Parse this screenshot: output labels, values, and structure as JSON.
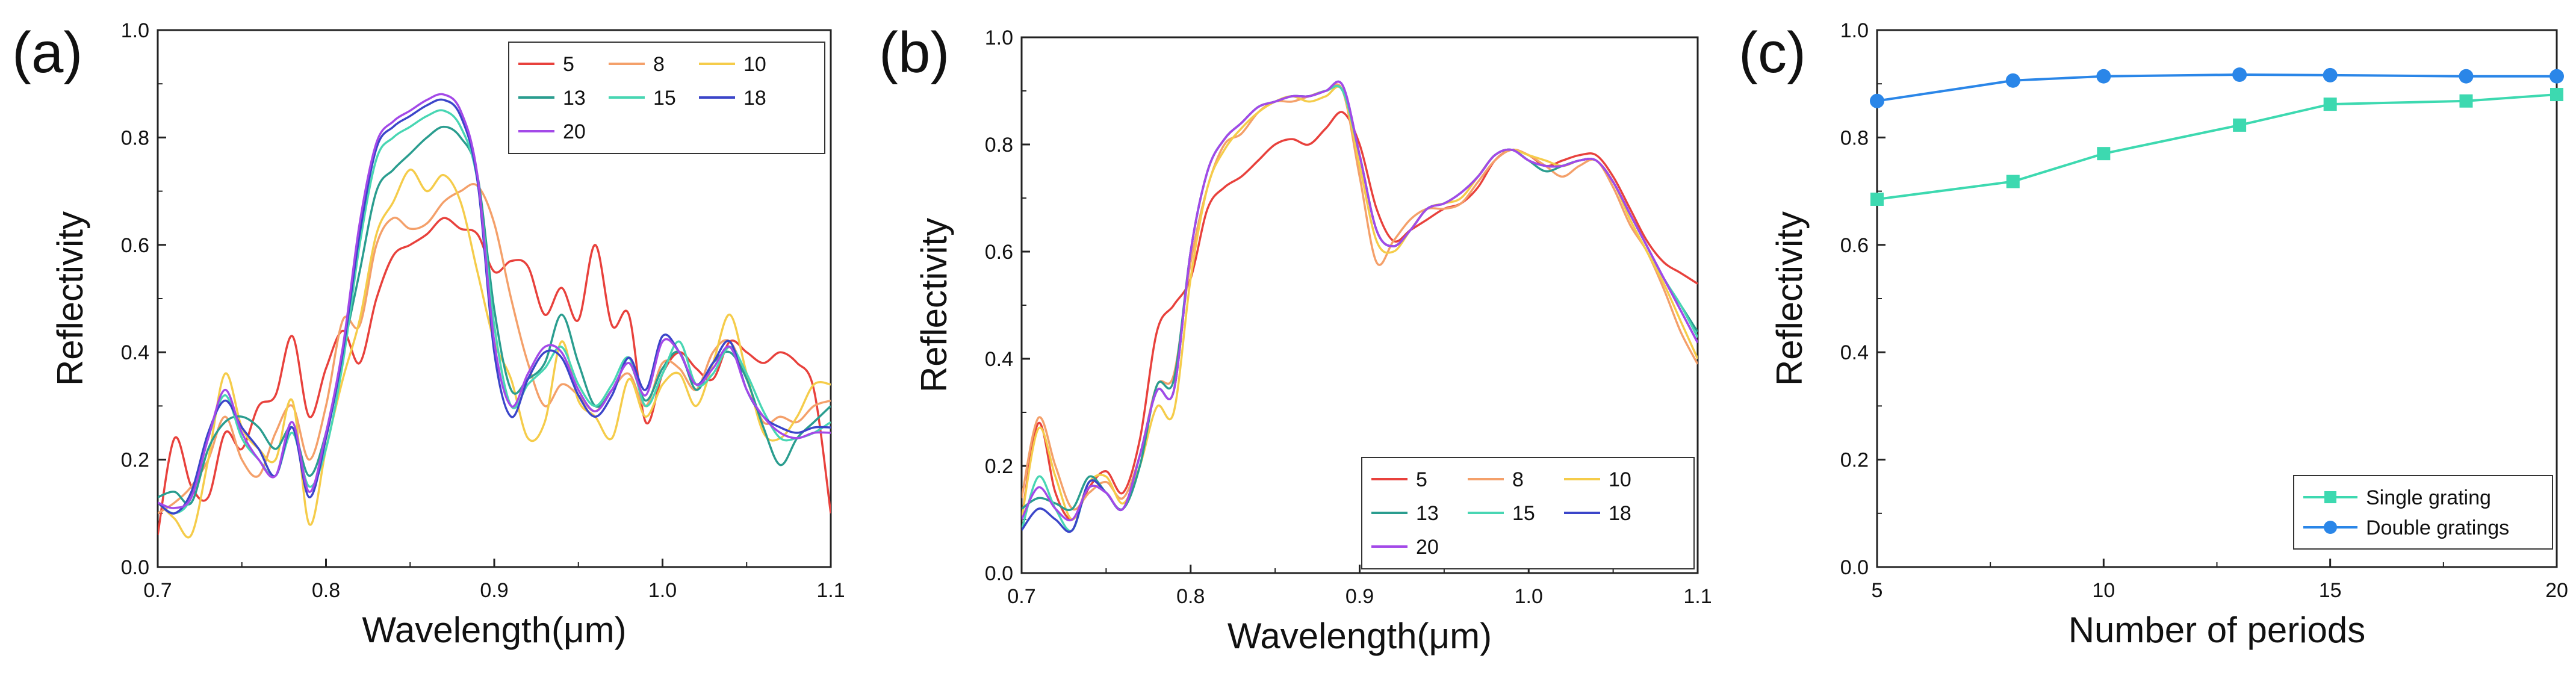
{
  "figure": {
    "panels": [
      {
        "label": "(a)",
        "chart_key": 0
      },
      {
        "label": "(b)",
        "chart_key": 1
      },
      {
        "label": "(c)",
        "chart_key": 2
      }
    ]
  },
  "chart_data": [
    {
      "type": "line",
      "panel": "(a)",
      "xlabel": "Wavelength(μm)",
      "ylabel": "Reflectivity",
      "xlim": [
        0.7,
        1.1
      ],
      "ylim": [
        0.0,
        1.0
      ],
      "xticks": [
        "0.7",
        "0.8",
        "0.9",
        "1.0",
        "1.1"
      ],
      "yticks": [
        "0.0",
        "0.2",
        "0.4",
        "0.6",
        "0.8",
        "1.0"
      ],
      "legend_position": "top-right",
      "x": [
        0.7,
        0.71,
        0.72,
        0.73,
        0.74,
        0.75,
        0.76,
        0.77,
        0.78,
        0.79,
        0.8,
        0.81,
        0.82,
        0.83,
        0.84,
        0.85,
        0.86,
        0.87,
        0.88,
        0.89,
        0.9,
        0.91,
        0.92,
        0.93,
        0.94,
        0.95,
        0.96,
        0.97,
        0.98,
        0.99,
        1.0,
        1.01,
        1.02,
        1.03,
        1.04,
        1.05,
        1.06,
        1.07,
        1.08,
        1.09,
        1.1
      ],
      "series": [
        {
          "name": "5",
          "color": "#e8413c",
          "values": [
            0.06,
            0.24,
            0.15,
            0.13,
            0.25,
            0.22,
            0.3,
            0.32,
            0.43,
            0.28,
            0.37,
            0.44,
            0.38,
            0.5,
            0.58,
            0.6,
            0.62,
            0.65,
            0.63,
            0.62,
            0.55,
            0.57,
            0.56,
            0.47,
            0.52,
            0.46,
            0.6,
            0.45,
            0.47,
            0.27,
            0.36,
            0.4,
            0.37,
            0.35,
            0.42,
            0.4,
            0.38,
            0.4,
            0.38,
            0.33,
            0.1
          ]
        },
        {
          "name": "8",
          "color": "#f4a06a",
          "values": [
            0.1,
            0.12,
            0.15,
            0.2,
            0.28,
            0.2,
            0.17,
            0.25,
            0.3,
            0.2,
            0.3,
            0.46,
            0.45,
            0.6,
            0.65,
            0.63,
            0.64,
            0.68,
            0.7,
            0.71,
            0.64,
            0.5,
            0.38,
            0.3,
            0.34,
            0.32,
            0.29,
            0.33,
            0.36,
            0.3,
            0.38,
            0.37,
            0.33,
            0.4,
            0.42,
            0.35,
            0.27,
            0.28,
            0.27,
            0.3,
            0.31
          ]
        },
        {
          "name": "10",
          "color": "#f5cc4a",
          "values": [
            0.12,
            0.09,
            0.06,
            0.2,
            0.36,
            0.26,
            0.22,
            0.2,
            0.31,
            0.08,
            0.22,
            0.35,
            0.46,
            0.62,
            0.68,
            0.74,
            0.7,
            0.73,
            0.68,
            0.55,
            0.42,
            0.35,
            0.24,
            0.27,
            0.42,
            0.31,
            0.28,
            0.24,
            0.35,
            0.28,
            0.34,
            0.36,
            0.3,
            0.38,
            0.47,
            0.36,
            0.25,
            0.24,
            0.28,
            0.34,
            0.34
          ]
        },
        {
          "name": "13",
          "color": "#2a9d8f",
          "values": [
            0.13,
            0.14,
            0.12,
            0.22,
            0.27,
            0.28,
            0.26,
            0.22,
            0.26,
            0.17,
            0.25,
            0.4,
            0.55,
            0.7,
            0.74,
            0.77,
            0.8,
            0.82,
            0.8,
            0.73,
            0.48,
            0.33,
            0.35,
            0.38,
            0.47,
            0.38,
            0.3,
            0.33,
            0.38,
            0.31,
            0.37,
            0.4,
            0.33,
            0.38,
            0.4,
            0.35,
            0.26,
            0.19,
            0.24,
            0.27,
            0.3
          ]
        },
        {
          "name": "15",
          "color": "#48d6b3",
          "values": [
            0.12,
            0.1,
            0.13,
            0.24,
            0.32,
            0.24,
            0.2,
            0.17,
            0.25,
            0.15,
            0.22,
            0.38,
            0.6,
            0.76,
            0.8,
            0.82,
            0.84,
            0.85,
            0.82,
            0.72,
            0.45,
            0.3,
            0.34,
            0.37,
            0.41,
            0.34,
            0.3,
            0.34,
            0.39,
            0.3,
            0.36,
            0.42,
            0.34,
            0.36,
            0.41,
            0.36,
            0.29,
            0.24,
            0.24,
            0.25,
            0.27
          ]
        },
        {
          "name": "18",
          "color": "#3b45c9",
          "values": [
            0.12,
            0.1,
            0.14,
            0.25,
            0.31,
            0.26,
            0.22,
            0.17,
            0.26,
            0.13,
            0.24,
            0.4,
            0.62,
            0.78,
            0.82,
            0.84,
            0.86,
            0.87,
            0.84,
            0.72,
            0.4,
            0.28,
            0.35,
            0.4,
            0.39,
            0.32,
            0.28,
            0.32,
            0.39,
            0.33,
            0.43,
            0.4,
            0.34,
            0.38,
            0.42,
            0.33,
            0.28,
            0.26,
            0.25,
            0.26,
            0.26
          ]
        },
        {
          "name": "20",
          "color": "#a349e8",
          "values": [
            0.12,
            0.11,
            0.13,
            0.24,
            0.33,
            0.25,
            0.2,
            0.17,
            0.27,
            0.14,
            0.25,
            0.41,
            0.64,
            0.79,
            0.83,
            0.85,
            0.87,
            0.88,
            0.85,
            0.73,
            0.42,
            0.3,
            0.36,
            0.41,
            0.4,
            0.33,
            0.29,
            0.33,
            0.38,
            0.32,
            0.42,
            0.4,
            0.34,
            0.37,
            0.41,
            0.33,
            0.28,
            0.25,
            0.24,
            0.25,
            0.25
          ]
        }
      ]
    },
    {
      "type": "line",
      "panel": "(b)",
      "xlabel": "Wavelength(μm)",
      "ylabel": "Reflectivity",
      "xlim": [
        0.7,
        1.1
      ],
      "ylim": [
        0.0,
        1.0
      ],
      "xticks": [
        "0.7",
        "0.8",
        "0.9",
        "1.0",
        "1.1"
      ],
      "yticks": [
        "0.0",
        "0.2",
        "0.4",
        "0.6",
        "0.8",
        "1.0"
      ],
      "legend_position": "bottom-right",
      "x": [
        0.7,
        0.71,
        0.72,
        0.73,
        0.74,
        0.75,
        0.76,
        0.77,
        0.78,
        0.79,
        0.8,
        0.81,
        0.82,
        0.83,
        0.84,
        0.85,
        0.86,
        0.87,
        0.88,
        0.89,
        0.9,
        0.91,
        0.92,
        0.93,
        0.94,
        0.95,
        0.96,
        0.97,
        0.98,
        0.99,
        1.0,
        1.01,
        1.02,
        1.03,
        1.04,
        1.05,
        1.06,
        1.07,
        1.08,
        1.09,
        1.1
      ],
      "series": [
        {
          "name": "5",
          "color": "#e8413c",
          "values": [
            0.1,
            0.28,
            0.15,
            0.1,
            0.16,
            0.19,
            0.15,
            0.25,
            0.45,
            0.5,
            0.55,
            0.68,
            0.72,
            0.74,
            0.77,
            0.8,
            0.81,
            0.8,
            0.83,
            0.86,
            0.8,
            0.68,
            0.62,
            0.64,
            0.66,
            0.68,
            0.69,
            0.72,
            0.77,
            0.79,
            0.78,
            0.76,
            0.77,
            0.78,
            0.78,
            0.74,
            0.68,
            0.62,
            0.58,
            0.56,
            0.54
          ]
        },
        {
          "name": "8",
          "color": "#f4a06a",
          "values": [
            0.14,
            0.29,
            0.2,
            0.12,
            0.15,
            0.17,
            0.14,
            0.22,
            0.35,
            0.37,
            0.58,
            0.72,
            0.8,
            0.82,
            0.86,
            0.88,
            0.88,
            0.89,
            0.9,
            0.9,
            0.74,
            0.58,
            0.62,
            0.66,
            0.68,
            0.68,
            0.69,
            0.73,
            0.77,
            0.79,
            0.78,
            0.76,
            0.74,
            0.76,
            0.77,
            0.72,
            0.65,
            0.6,
            0.53,
            0.45,
            0.39
          ]
        },
        {
          "name": "10",
          "color": "#f5cc4a",
          "values": [
            0.1,
            0.27,
            0.18,
            0.1,
            0.17,
            0.18,
            0.13,
            0.2,
            0.31,
            0.3,
            0.55,
            0.72,
            0.79,
            0.83,
            0.86,
            0.88,
            0.89,
            0.88,
            0.89,
            0.9,
            0.76,
            0.62,
            0.6,
            0.64,
            0.68,
            0.69,
            0.7,
            0.74,
            0.78,
            0.79,
            0.78,
            0.77,
            0.76,
            0.77,
            0.77,
            0.73,
            0.66,
            0.6,
            0.54,
            0.47,
            0.4
          ]
        },
        {
          "name": "13",
          "color": "#2a9d8f",
          "values": [
            0.12,
            0.14,
            0.13,
            0.12,
            0.18,
            0.15,
            0.12,
            0.2,
            0.35,
            0.36,
            0.6,
            0.75,
            0.81,
            0.84,
            0.87,
            0.88,
            0.89,
            0.89,
            0.9,
            0.9,
            0.78,
            0.64,
            0.61,
            0.64,
            0.68,
            0.69,
            0.71,
            0.74,
            0.78,
            0.79,
            0.77,
            0.75,
            0.76,
            0.77,
            0.77,
            0.73,
            0.67,
            0.61,
            0.55,
            0.5,
            0.45
          ]
        },
        {
          "name": "15",
          "color": "#48d6b3",
          "values": [
            0.08,
            0.18,
            0.12,
            0.08,
            0.17,
            0.15,
            0.12,
            0.22,
            0.34,
            0.34,
            0.6,
            0.75,
            0.81,
            0.84,
            0.87,
            0.88,
            0.89,
            0.89,
            0.9,
            0.9,
            0.78,
            0.64,
            0.61,
            0.64,
            0.68,
            0.69,
            0.71,
            0.74,
            0.78,
            0.79,
            0.77,
            0.76,
            0.76,
            0.77,
            0.77,
            0.73,
            0.67,
            0.61,
            0.55,
            0.5,
            0.44
          ]
        },
        {
          "name": "18",
          "color": "#3b45c9",
          "values": [
            0.08,
            0.12,
            0.1,
            0.08,
            0.17,
            0.15,
            0.12,
            0.22,
            0.34,
            0.34,
            0.6,
            0.75,
            0.81,
            0.84,
            0.87,
            0.88,
            0.89,
            0.89,
            0.9,
            0.91,
            0.78,
            0.64,
            0.61,
            0.64,
            0.68,
            0.69,
            0.71,
            0.74,
            0.78,
            0.79,
            0.77,
            0.76,
            0.76,
            0.77,
            0.77,
            0.73,
            0.67,
            0.61,
            0.55,
            0.49,
            0.43
          ]
        },
        {
          "name": "20",
          "color": "#a349e8",
          "values": [
            0.1,
            0.16,
            0.12,
            0.1,
            0.16,
            0.15,
            0.12,
            0.22,
            0.34,
            0.34,
            0.6,
            0.75,
            0.81,
            0.84,
            0.87,
            0.88,
            0.89,
            0.89,
            0.9,
            0.91,
            0.78,
            0.64,
            0.61,
            0.64,
            0.68,
            0.69,
            0.71,
            0.74,
            0.78,
            0.79,
            0.77,
            0.76,
            0.76,
            0.77,
            0.77,
            0.73,
            0.67,
            0.61,
            0.55,
            0.49,
            0.43
          ]
        }
      ]
    },
    {
      "type": "line",
      "panel": "(c)",
      "xlabel": "Number of periods",
      "ylabel": "Reflectivity",
      "xlim": [
        5,
        20
      ],
      "ylim": [
        0.0,
        1.0
      ],
      "xticks": [
        "5",
        "10",
        "15",
        "20"
      ],
      "yticks": [
        "0.0",
        "0.2",
        "0.4",
        "0.6",
        "0.8",
        "1.0"
      ],
      "legend_position": "bottom-right",
      "x": [
        5,
        8,
        10,
        13,
        15,
        18,
        20
      ],
      "series": [
        {
          "name": "Single grating",
          "color": "#3dd9b0",
          "marker": "square",
          "values": [
            0.685,
            0.718,
            0.77,
            0.823,
            0.862,
            0.868,
            0.88
          ]
        },
        {
          "name": "Double gratings",
          "color": "#2a86e8",
          "marker": "circle",
          "values": [
            0.868,
            0.906,
            0.914,
            0.917,
            0.916,
            0.914,
            0.914
          ]
        }
      ]
    }
  ]
}
